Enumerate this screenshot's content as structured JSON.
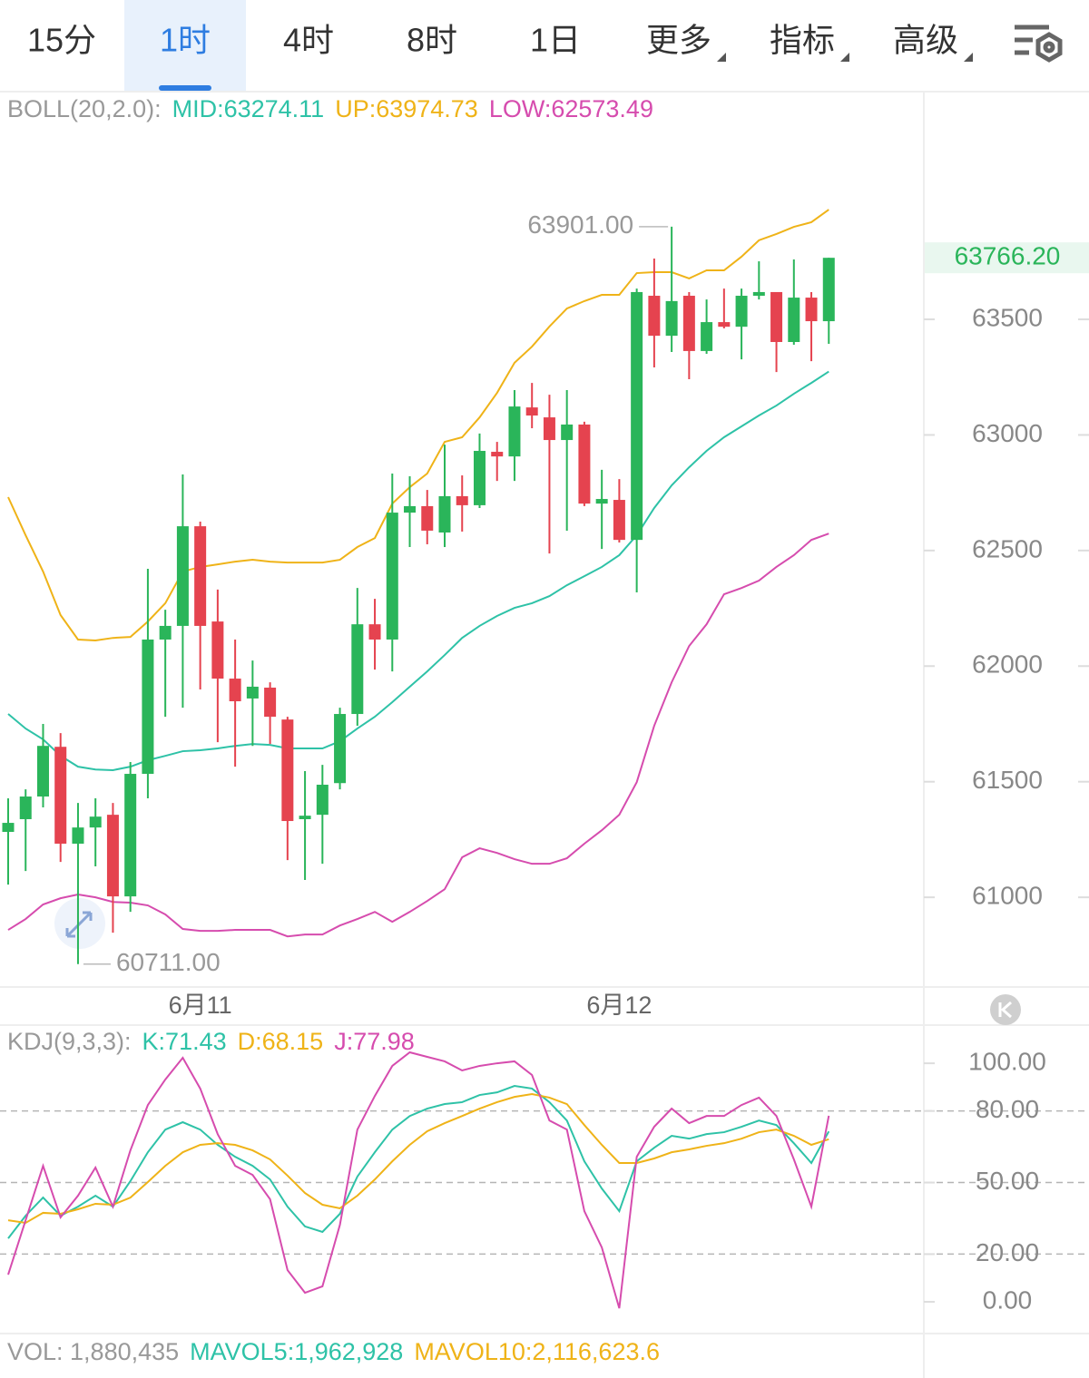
{
  "tabs": [
    {
      "label": "15分"
    },
    {
      "label": "1时"
    },
    {
      "label": "4时"
    },
    {
      "label": "8时"
    },
    {
      "label": "1日"
    },
    {
      "label": "更多",
      "dropdown": true
    },
    {
      "label": "指标",
      "dropdown": true
    },
    {
      "label": "高级",
      "dropdown": true
    }
  ],
  "active_tab": 1,
  "volume": {
    "label": "VOL: 1,880,435",
    "ma5": "MAVOL5:1,962,928",
    "ma10": "MAVOL10:2,116,623.6"
  },
  "chart_data": [
    {
      "type": "candlestick",
      "indicator": "BOLL(20,2.0):",
      "categories": [
        null,
        null,
        null,
        null,
        null,
        null,
        null,
        null,
        null,
        null,
        null,
        "6月11",
        null,
        null,
        null,
        null,
        null,
        null,
        null,
        null,
        null,
        null,
        null,
        null,
        null,
        null,
        null,
        null,
        null,
        null,
        null,
        null,
        null,
        null,
        null,
        "6月12",
        null,
        null,
        null,
        null,
        null,
        null,
        null,
        null,
        null,
        null,
        null,
        null
      ],
      "open": [
        61283,
        61338,
        61436,
        61651,
        61232,
        61302,
        61357,
        61004,
        61534,
        62115,
        62174,
        62605,
        62193,
        61946,
        61860,
        61907,
        61769,
        61338,
        61357,
        61494,
        61793,
        62181,
        62115,
        62664,
        62692,
        62578,
        62735,
        62696,
        62927,
        62907,
        63119,
        63076,
        62978,
        63045,
        62703,
        62719,
        62546,
        63602,
        63429,
        63602,
        63363,
        63488,
        63468,
        63602,
        63618,
        63402,
        63594,
        63492
      ],
      "high": [
        61428,
        61467,
        61750,
        61710,
        61408,
        61428,
        61408,
        61585,
        62421,
        62244,
        62829,
        62625,
        62331,
        62115,
        62024,
        61930,
        61781,
        61546,
        61573,
        61820,
        62338,
        62291,
        62833,
        62821,
        62762,
        62958,
        62825,
        63006,
        62970,
        63194,
        63225,
        63174,
        63194,
        63057,
        62849,
        62809,
        63633,
        63763,
        63901,
        63618,
        63586,
        63633,
        63633,
        63751,
        63618,
        63759,
        63618,
        63766.2
      ],
      "low": [
        61055,
        61114,
        61389,
        61153,
        60711,
        61134,
        60847,
        60937,
        61428,
        61781,
        61820,
        61899,
        61671,
        61565,
        61655,
        61663,
        61161,
        61075,
        61145,
        61467,
        61742,
        61985,
        61977,
        62515,
        62527,
        62515,
        62582,
        62684,
        62801,
        62801,
        63029,
        62487,
        62586,
        62692,
        62507,
        62535,
        62319,
        63292,
        63359,
        63241,
        63351,
        63461,
        63327,
        63586,
        63272,
        63390,
        63319,
        63394
      ],
      "close": [
        61322,
        61436,
        61655,
        61232,
        61302,
        61349,
        61004,
        61534,
        62115,
        62174,
        62605,
        62174,
        61946,
        61848,
        61911,
        61781,
        61330,
        61353,
        61487,
        61793,
        62181,
        62115,
        62664,
        62692,
        62586,
        62735,
        62696,
        62931,
        62907,
        63123,
        63084,
        62978,
        63045,
        62703,
        62723,
        62546,
        63618,
        63429,
        63579,
        63363,
        63488,
        63468,
        63602,
        63618,
        63402,
        63594,
        63492,
        63766.2
      ],
      "up_color": "#2ab55a",
      "down_color": "#e5434f",
      "series": [
        {
          "name": "MID:63274.11",
          "color": "#2ec2a7",
          "values": [
            61793,
            61730,
            61683,
            61612,
            61565,
            61553,
            61550,
            61565,
            61593,
            61612,
            61632,
            61636,
            61644,
            61655,
            61663,
            61659,
            61644,
            61644,
            61644,
            61675,
            61730,
            61781,
            61844,
            61911,
            61977,
            62048,
            62122,
            62174,
            62217,
            62252,
            62272,
            62303,
            62350,
            62389,
            62429,
            62480,
            62566,
            62684,
            62782,
            62860,
            62931,
            62990,
            63037,
            63084,
            63127,
            63178,
            63225,
            63274.11
          ]
        },
        {
          "name": "UP:63974.73",
          "color": "#efb318",
          "values": [
            62731,
            62566,
            62409,
            62221,
            62115,
            62111,
            62122,
            62126,
            62193,
            62272,
            62409,
            62429,
            62440,
            62452,
            62460,
            62452,
            62448,
            62448,
            62448,
            62460,
            62515,
            62554,
            62703,
            62774,
            62833,
            62970,
            62990,
            63076,
            63182,
            63312,
            63382,
            63469,
            63547,
            63579,
            63606,
            63606,
            63700,
            63704,
            63704,
            63677,
            63712,
            63712,
            63771,
            63842,
            63869,
            63900,
            63920,
            63974.73
          ]
        },
        {
          "name": "LOW:62573.49",
          "color": "#d64cae",
          "values": [
            60859,
            60906,
            60969,
            60996,
            61012,
            61000,
            60980,
            60977,
            60965,
            60926,
            60863,
            60855,
            60855,
            60859,
            60859,
            60859,
            60831,
            60839,
            60839,
            60878,
            60906,
            60937,
            60894,
            60937,
            60984,
            61035,
            61173,
            61212,
            61192,
            61165,
            61145,
            61145,
            61169,
            61232,
            61290,
            61357,
            61498,
            61742,
            61930,
            62087,
            62181,
            62311,
            62338,
            62370,
            62429,
            62480,
            62546,
            62573.49
          ]
        }
      ],
      "ylim": [
        60612,
        64485
      ],
      "yticks": [
        61000,
        61500,
        62000,
        62500,
        63000,
        63500
      ],
      "last_price": {
        "value": 63766.2,
        "label": "63766.20"
      },
      "high_label": {
        "value": 63901,
        "label": "63901.00"
      },
      "low_label": {
        "value": 60711,
        "label": "60711.00"
      }
    },
    {
      "type": "line",
      "indicator": "KDJ(9,3,3):",
      "series": [
        {
          "name": "K:71.43",
          "color": "#2ec2a7",
          "values": [
            26.6,
            36.1,
            43.7,
            36.1,
            39.9,
            44.5,
            39.9,
            50.6,
            62.7,
            72.2,
            75.3,
            72.2,
            65.8,
            60.8,
            57.0,
            51.3,
            39.9,
            31.6,
            29.3,
            36.9,
            52.5,
            62.7,
            72.2,
            77.9,
            81.0,
            82.9,
            83.7,
            86.7,
            87.8,
            90.5,
            89.4,
            83.7,
            76.0,
            58.9,
            47.5,
            38.0,
            58.9,
            64.6,
            69.6,
            68.4,
            70.3,
            71.1,
            73.4,
            76.0,
            74.1,
            66.5,
            58.2,
            71.43
          ]
        },
        {
          "name": "D:68.15",
          "color": "#efb318",
          "values": [
            34.2,
            33.1,
            37.3,
            36.9,
            38.8,
            41.1,
            40.7,
            43.7,
            50.2,
            57.0,
            62.7,
            65.8,
            66.5,
            65.8,
            63.5,
            59.7,
            52.9,
            45.6,
            40.7,
            39.2,
            44.5,
            51.3,
            58.9,
            65.8,
            71.5,
            74.9,
            77.9,
            81.0,
            83.7,
            85.9,
            87.1,
            85.6,
            82.9,
            74.1,
            65.8,
            58.2,
            58.2,
            60.1,
            62.7,
            63.9,
            65.4,
            66.5,
            68.4,
            71.1,
            72.2,
            69.6,
            65.8,
            68.15
          ]
        },
        {
          "name": "J:77.98",
          "color": "#d64cae",
          "values": [
            11.4,
            34.2,
            57.0,
            35.4,
            44.5,
            56.3,
            39.9,
            63.5,
            82.5,
            93.2,
            102.3,
            89.4,
            70.3,
            57.0,
            53.2,
            43.0,
            13.3,
            3.8,
            6.5,
            32.3,
            72.2,
            86.3,
            98.9,
            104.6,
            102.7,
            100.8,
            97.0,
            98.9,
            100.0,
            100.8,
            95.1,
            76.0,
            72.2,
            38.0,
            22.8,
            -2.7,
            60.8,
            73.4,
            81.0,
            74.9,
            77.9,
            77.9,
            82.5,
            85.6,
            77.9,
            59.7,
            39.9,
            77.98
          ]
        }
      ],
      "ylim": [
        -13.3,
        116
      ],
      "yticks": [
        {
          "value": 100,
          "label": "100.00"
        },
        {
          "value": 80,
          "label": "80.00"
        },
        {
          "value": 50,
          "label": "50.00"
        },
        {
          "value": 20,
          "label": "20.00"
        },
        {
          "value": 0,
          "label": "0.00"
        }
      ],
      "hlines": [
        80,
        50,
        20
      ]
    }
  ]
}
